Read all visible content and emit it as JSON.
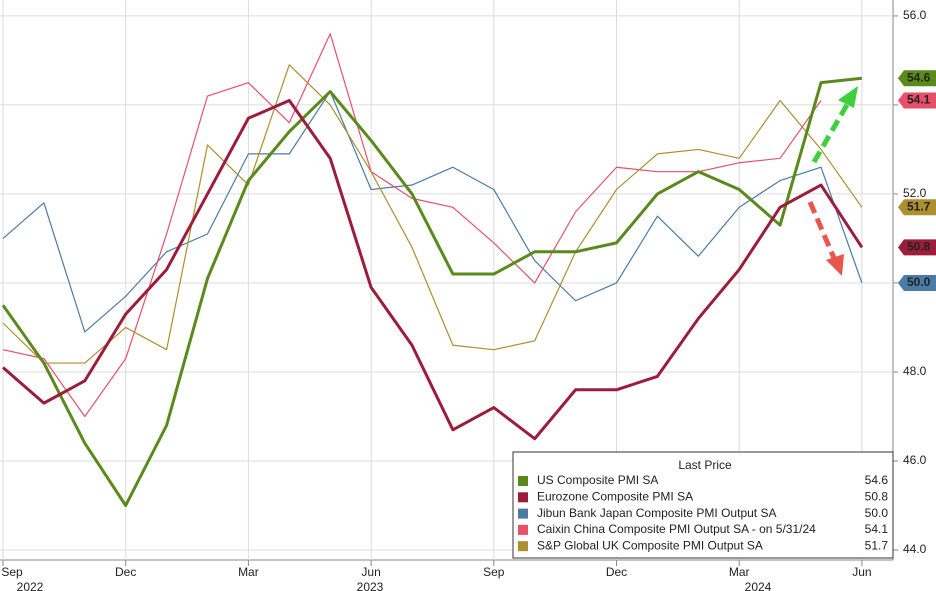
{
  "chart_data": {
    "type": "line",
    "categories": [
      "Sep",
      null,
      null,
      "Dec",
      null,
      null,
      "Mar",
      null,
      null,
      "Jun",
      null,
      null,
      "Sep",
      null,
      null,
      "Dec",
      null,
      null,
      "Mar",
      null,
      null,
      "Jun"
    ],
    "years": [
      "2022",
      "2023",
      "2024"
    ],
    "ylim": [
      44,
      56.2
    ],
    "yticks": [
      {
        "value": 44,
        "label": "44.0"
      },
      {
        "value": 46,
        "label": "46.0"
      },
      {
        "value": 48,
        "label": "48.0"
      },
      {
        "value": 50,
        "label": "50.0"
      },
      {
        "value": 52,
        "label": "52.0"
      },
      {
        "value": 54,
        "label": "54.0"
      },
      {
        "value": 56,
        "label": "56.0"
      }
    ],
    "grid": true,
    "legend_title": "Last Price",
    "legend_position": "lower right",
    "series": [
      {
        "name": "US Composite PMI SA",
        "color": "#5b8a1c",
        "width": 3,
        "last_label": "54.6",
        "values": [
          49.5,
          48.2,
          46.4,
          45.0,
          46.8,
          50.1,
          52.3,
          53.4,
          54.3,
          53.2,
          52.0,
          50.2,
          50.2,
          50.7,
          50.7,
          50.9,
          52.0,
          52.5,
          52.1,
          51.3,
          54.5,
          54.6
        ]
      },
      {
        "name": "Eurozone Composite PMI SA",
        "color": "#9c1c3c",
        "width": 3,
        "last_label": "50.8",
        "values": [
          48.1,
          47.3,
          47.8,
          49.3,
          50.3,
          52.0,
          53.7,
          54.1,
          52.8,
          49.9,
          48.6,
          46.7,
          47.2,
          46.5,
          47.6,
          47.6,
          47.9,
          49.2,
          50.3,
          51.7,
          52.2,
          50.8
        ]
      },
      {
        "name": "Jibun Bank Japan Composite PMI Output SA",
        "color": "#4a7ba6",
        "width": 1.2,
        "last_label": "50.0",
        "values": [
          51.0,
          51.8,
          48.9,
          49.7,
          50.7,
          51.1,
          52.9,
          52.9,
          54.3,
          52.1,
          52.2,
          52.6,
          52.1,
          50.5,
          49.6,
          50.0,
          51.5,
          50.6,
          51.7,
          52.3,
          52.6,
          50.0
        ]
      },
      {
        "name": "Caixin China Composite PMI Output SA -  on 5/31/24",
        "color": "#e8506a",
        "width": 1.2,
        "last_label": "54.1",
        "values": [
          48.5,
          48.3,
          47.0,
          48.3,
          51.1,
          54.2,
          54.5,
          53.6,
          55.6,
          52.5,
          51.9,
          51.7,
          50.9,
          50.0,
          51.6,
          52.6,
          52.5,
          52.5,
          52.7,
          52.8,
          54.1,
          null
        ]
      },
      {
        "name": "S&P Global UK Composite PMI Output SA",
        "color": "#ad8f2e",
        "width": 1.2,
        "last_label": "51.7",
        "values": [
          49.1,
          48.2,
          48.2,
          49.0,
          48.5,
          53.1,
          52.2,
          54.9,
          54.0,
          52.5,
          50.8,
          48.6,
          48.5,
          48.7,
          50.7,
          52.1,
          52.9,
          53.0,
          52.8,
          54.1,
          53.0,
          51.7
        ]
      }
    ]
  }
}
